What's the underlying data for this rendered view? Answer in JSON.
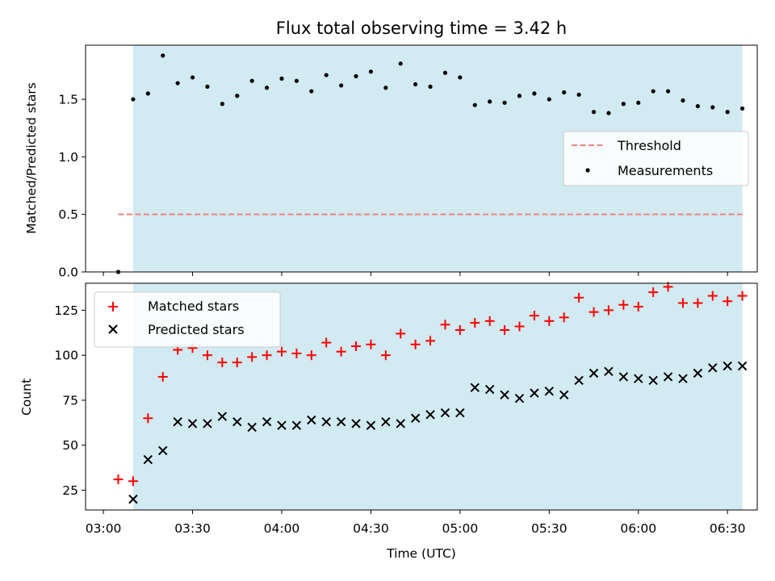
{
  "chart_data": [
    {
      "type": "scatter",
      "title": "Flux total observing time = 3.42 h",
      "ylabel": "Matched/Predicted stars",
      "xlabel": "",
      "ylim": [
        0,
        1.97
      ],
      "xlim": [
        "02:54",
        "06:40"
      ],
      "yticks": [
        0.0,
        0.5,
        1.0,
        1.5
      ],
      "ytick_labels": [
        "0.0",
        "0.5",
        "1.0",
        "1.5"
      ],
      "shaded_span": [
        "03:10",
        "06:35"
      ],
      "shade_color": "#add8e6",
      "legend_position": "center-right",
      "series": [
        {
          "name": "Threshold",
          "style": "dashed-line",
          "color": "#f08080",
          "x": [
            "03:05",
            "06:35"
          ],
          "y": [
            0.5,
            0.5
          ]
        },
        {
          "name": "Measurements",
          "style": "dot",
          "color": "#000000",
          "x": [
            "03:05",
            "03:10",
            "03:15",
            "03:20",
            "03:25",
            "03:30",
            "03:35",
            "03:40",
            "03:45",
            "03:50",
            "03:55",
            "04:00",
            "04:05",
            "04:10",
            "04:15",
            "04:20",
            "04:25",
            "04:30",
            "04:35",
            "04:40",
            "04:45",
            "04:50",
            "04:55",
            "05:00",
            "05:05",
            "05:10",
            "05:15",
            "05:20",
            "05:25",
            "05:30",
            "05:35",
            "05:40",
            "05:45",
            "05:50",
            "05:55",
            "06:00",
            "06:05",
            "06:10",
            "06:15",
            "06:20",
            "06:25",
            "06:30",
            "06:35"
          ],
          "y": [
            0.0,
            1.5,
            1.55,
            1.88,
            1.64,
            1.69,
            1.61,
            1.46,
            1.53,
            1.66,
            1.6,
            1.68,
            1.66,
            1.57,
            1.71,
            1.62,
            1.7,
            1.74,
            1.6,
            1.81,
            1.63,
            1.61,
            1.73,
            1.69,
            1.45,
            1.48,
            1.47,
            1.53,
            1.55,
            1.5,
            1.56,
            1.54,
            1.39,
            1.38,
            1.46,
            1.47,
            1.57,
            1.57,
            1.49,
            1.44,
            1.43,
            1.39,
            1.42
          ]
        }
      ]
    },
    {
      "type": "scatter",
      "title": "",
      "xlabel": "Time (UTC)",
      "ylabel": "Count",
      "ylim": [
        14,
        140
      ],
      "xlim": [
        "02:54",
        "06:40"
      ],
      "yticks": [
        25,
        50,
        75,
        100,
        125
      ],
      "ytick_labels": [
        "25",
        "50",
        "75",
        "100",
        "125"
      ],
      "xticks": [
        "03:00",
        "03:30",
        "04:00",
        "04:30",
        "05:00",
        "05:30",
        "06:00",
        "06:30"
      ],
      "xtick_labels": [
        "03:00",
        "03:30",
        "04:00",
        "04:30",
        "05:00",
        "05:30",
        "06:00",
        "06:30"
      ],
      "shaded_span": [
        "03:10",
        "06:35"
      ],
      "shade_color": "#add8e6",
      "legend_position": "top-left",
      "series": [
        {
          "name": "Matched stars",
          "style": "plus",
          "color": "#ff0000",
          "x": [
            "03:05",
            "03:10",
            "03:15",
            "03:20",
            "03:25",
            "03:30",
            "03:35",
            "03:40",
            "03:45",
            "03:50",
            "03:55",
            "04:00",
            "04:05",
            "04:10",
            "04:15",
            "04:20",
            "04:25",
            "04:30",
            "04:35",
            "04:40",
            "04:45",
            "04:50",
            "04:55",
            "05:00",
            "05:05",
            "05:10",
            "05:15",
            "05:20",
            "05:25",
            "05:30",
            "05:35",
            "05:40",
            "05:45",
            "05:50",
            "05:55",
            "06:00",
            "06:05",
            "06:10",
            "06:15",
            "06:20",
            "06:25",
            "06:30",
            "06:35"
          ],
          "y": [
            31,
            30,
            65,
            88,
            103,
            104,
            100,
            96,
            96,
            99,
            100,
            102,
            101,
            100,
            107,
            102,
            105,
            106,
            100,
            112,
            106,
            108,
            117,
            114,
            118,
            119,
            114,
            116,
            122,
            119,
            121,
            132,
            124,
            125,
            128,
            127,
            135,
            138,
            129,
            129,
            133,
            130,
            133
          ]
        },
        {
          "name": "Predicted stars",
          "style": "x",
          "color": "#000000",
          "x": [
            "03:10",
            "03:15",
            "03:20",
            "03:25",
            "03:30",
            "03:35",
            "03:40",
            "03:45",
            "03:50",
            "03:55",
            "04:00",
            "04:05",
            "04:10",
            "04:15",
            "04:20",
            "04:25",
            "04:30",
            "04:35",
            "04:40",
            "04:45",
            "04:50",
            "04:55",
            "05:00",
            "05:05",
            "05:10",
            "05:15",
            "05:20",
            "05:25",
            "05:30",
            "05:35",
            "05:40",
            "05:45",
            "05:50",
            "05:55",
            "06:00",
            "06:05",
            "06:10",
            "06:15",
            "06:20",
            "06:25",
            "06:30",
            "06:35"
          ],
          "y": [
            20,
            42,
            47,
            63,
            62,
            62,
            66,
            63,
            60,
            63,
            61,
            61,
            64,
            63,
            63,
            62,
            61,
            63,
            62,
            65,
            67,
            68,
            68,
            82,
            81,
            78,
            76,
            79,
            80,
            78,
            86,
            90,
            91,
            88,
            87,
            86,
            88,
            87,
            90,
            93,
            94,
            94
          ]
        }
      ]
    }
  ]
}
